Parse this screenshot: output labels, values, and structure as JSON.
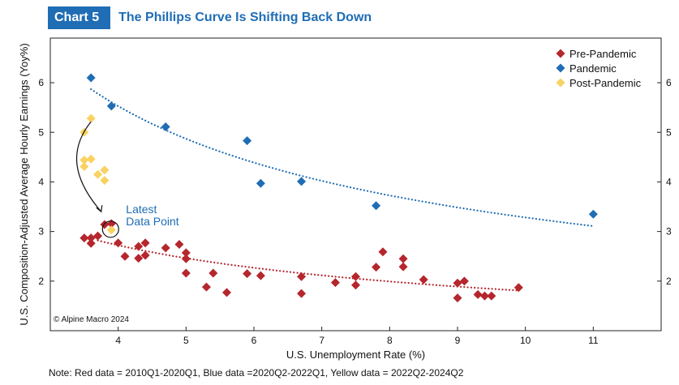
{
  "header": {
    "badge": "Chart 5",
    "title": "The Phillips Curve Is Shifting Back Down"
  },
  "chart_data": {
    "type": "scatter",
    "xlabel": "U.S. Unemployment Rate (%)",
    "ylabel": "U.S. Composition-Adjusted Average Hourly Earnings (Yoy%)",
    "xlim": [
      3,
      12
    ],
    "ylim": [
      1.0,
      6.9
    ],
    "xticks": [
      4,
      5,
      6,
      7,
      8,
      9,
      10,
      11
    ],
    "yticks": [
      2,
      3,
      4,
      5,
      6
    ],
    "legend_position": "top-right",
    "series": [
      {
        "name": "Pre-Pandemic",
        "color": "#b5262d",
        "points": [
          [
            3.5,
            2.87
          ],
          [
            3.6,
            2.76
          ],
          [
            3.6,
            2.87
          ],
          [
            3.7,
            2.91
          ],
          [
            3.8,
            3.14
          ],
          [
            3.9,
            3.16
          ],
          [
            4.0,
            2.77
          ],
          [
            4.1,
            2.5
          ],
          [
            4.3,
            2.46
          ],
          [
            4.3,
            2.7
          ],
          [
            4.4,
            2.77
          ],
          [
            4.4,
            2.52
          ],
          [
            4.7,
            2.67
          ],
          [
            4.9,
            2.74
          ],
          [
            5.0,
            2.57
          ],
          [
            5.0,
            2.45
          ],
          [
            5.0,
            2.16
          ],
          [
            5.3,
            1.88
          ],
          [
            5.4,
            2.16
          ],
          [
            5.6,
            1.77
          ],
          [
            5.9,
            2.15
          ],
          [
            6.1,
            2.11
          ],
          [
            6.7,
            2.09
          ],
          [
            6.7,
            1.75
          ],
          [
            7.2,
            1.97
          ],
          [
            7.5,
            2.09
          ],
          [
            7.5,
            1.92
          ],
          [
            7.8,
            2.28
          ],
          [
            7.9,
            2.59
          ],
          [
            8.2,
            2.45
          ],
          [
            8.2,
            2.29
          ],
          [
            8.5,
            2.03
          ],
          [
            9.0,
            1.96
          ],
          [
            9.0,
            1.66
          ],
          [
            9.1,
            2.0
          ],
          [
            9.3,
            1.73
          ],
          [
            9.4,
            1.7
          ],
          [
            9.5,
            1.7
          ],
          [
            9.9,
            1.87
          ]
        ]
      },
      {
        "name": "Pandemic",
        "color": "#1f6db5",
        "points": [
          [
            3.6,
            6.1
          ],
          [
            3.9,
            5.53
          ],
          [
            4.7,
            5.11
          ],
          [
            5.9,
            4.83
          ],
          [
            6.1,
            3.97
          ],
          [
            6.7,
            4.01
          ],
          [
            7.8,
            3.52
          ],
          [
            11.0,
            3.35
          ]
        ]
      },
      {
        "name": "Post-Pandemic",
        "color": "#f9d262",
        "points": [
          [
            3.5,
            5.0
          ],
          [
            3.6,
            5.28
          ],
          [
            3.5,
            4.44
          ],
          [
            3.5,
            4.31
          ],
          [
            3.6,
            4.46
          ],
          [
            3.7,
            4.15
          ],
          [
            3.8,
            4.24
          ],
          [
            3.8,
            4.03
          ],
          [
            3.9,
            3.03
          ]
        ]
      }
    ],
    "trendlines": [
      {
        "series": "Pandemic",
        "color": "#1f6db5",
        "x_range": [
          3.6,
          11.0
        ],
        "values_at": [
          [
            3.6,
            5.87
          ],
          [
            11.0,
            3.11
          ]
        ]
      },
      {
        "series": "Pre-Pandemic",
        "color": "#b5262d",
        "x_range": [
          3.7,
          9.9
        ],
        "values_at": [
          [
            3.7,
            2.82
          ],
          [
            9.9,
            1.81
          ]
        ]
      }
    ],
    "annotations": {
      "latest": [
        "Latest",
        "Data Point"
      ],
      "copyright": "© Alpine Macro 2024"
    }
  },
  "note": "Note: Red data = 2010Q1-2020Q1, Blue data =2020Q2-2022Q1, Yellow data = 2022Q2-2024Q2"
}
